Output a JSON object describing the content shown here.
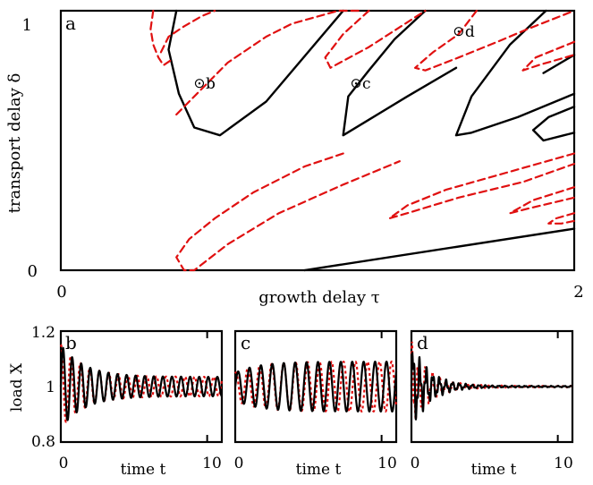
{
  "chart_data": [
    {
      "panel_label": "a",
      "type": "line",
      "xlabel": "growth delay τ",
      "ylabel": "transport delay δ",
      "xlim": [
        0,
        2
      ],
      "ylim": [
        0,
        1
      ],
      "xticks": [
        "0",
        "2"
      ],
      "yticks": [
        "0",
        "1"
      ],
      "colors": {
        "black": "#000000",
        "red": "#e01010"
      },
      "series": [
        {
          "style": "black-solid",
          "x": [
            0.95,
            2.0
          ],
          "y": [
            0.0,
            0.16
          ]
        },
        {
          "style": "black-solid",
          "x": [
            0.45,
            0.42,
            0.46,
            0.52,
            0.62,
            0.8,
            1.1
          ],
          "y": [
            1.0,
            0.85,
            0.68,
            0.55,
            0.52,
            0.65,
            1.0
          ]
        },
        {
          "style": "black-solid",
          "x": [
            1.42,
            1.3,
            1.2,
            1.12,
            1.1,
            1.2,
            1.35,
            1.54
          ],
          "y": [
            1.0,
            0.89,
            0.77,
            0.67,
            0.52,
            0.58,
            0.67,
            0.78
          ]
        },
        {
          "style": "black-solid",
          "x": [
            1.89,
            1.75,
            1.6,
            1.54,
            1.6,
            1.78,
            2.0
          ],
          "y": [
            1.0,
            0.87,
            0.67,
            0.52,
            0.53,
            0.59,
            0.68
          ]
        },
        {
          "style": "black-solid",
          "x": [
            1.88,
            2.0
          ],
          "y": [
            0.76,
            0.83
          ]
        },
        {
          "style": "black-solid",
          "x": [
            2.0,
            1.9,
            1.84,
            1.88,
            1.96,
            2.0
          ],
          "y": [
            0.63,
            0.59,
            0.54,
            0.5,
            0.52,
            0.53
          ]
        },
        {
          "style": "red-dashed",
          "x": [
            0.36,
            0.35,
            0.36,
            0.38,
            0.4,
            0.43
          ],
          "y": [
            1.0,
            0.93,
            0.87,
            0.82,
            0.79,
            0.81
          ]
        },
        {
          "style": "red-dashed",
          "x": [
            0.45,
            0.55,
            0.65,
            0.8,
            0.9,
            1.08,
            1.16
          ],
          "y": [
            0.6,
            0.7,
            0.8,
            0.9,
            0.95,
            1.0,
            1.0
          ]
        },
        {
          "style": "red-dashed",
          "x": [
            0.39,
            0.42,
            0.48,
            0.55,
            0.6
          ],
          "y": [
            0.84,
            0.9,
            0.94,
            0.98,
            1.0
          ]
        },
        {
          "style": "red-dashed",
          "x": [
            1.1,
            0.95,
            0.75,
            0.6,
            0.5,
            0.45,
            0.48,
            0.52,
            0.65,
            0.85,
            1.1,
            1.32
          ],
          "y": [
            0.45,
            0.4,
            0.3,
            0.2,
            0.12,
            0.05,
            0.0,
            0.0,
            0.1,
            0.22,
            0.33,
            0.42
          ]
        },
        {
          "style": "red-dashed",
          "x": [
            1.2,
            1.1,
            1.03,
            1.05,
            1.2,
            1.42
          ],
          "y": [
            1.0,
            0.91,
            0.82,
            0.78,
            0.86,
            1.0
          ]
        },
        {
          "style": "red-dashed",
          "x": [
            2.0,
            1.75,
            1.5,
            1.35,
            1.28,
            1.35,
            1.55,
            1.8,
            2.0
          ],
          "y": [
            0.45,
            0.38,
            0.31,
            0.25,
            0.2,
            0.22,
            0.28,
            0.34,
            0.41
          ]
        },
        {
          "style": "red-dashed",
          "x": [
            1.62,
            1.55,
            1.45,
            1.38,
            1.42,
            1.55,
            1.7,
            1.82,
            2.0
          ],
          "y": [
            1.0,
            0.91,
            0.84,
            0.78,
            0.77,
            0.82,
            0.88,
            0.93,
            1.0
          ]
        },
        {
          "style": "red-dashed",
          "x": [
            2.0,
            1.84,
            1.75,
            1.83,
            2.0
          ],
          "y": [
            0.32,
            0.27,
            0.22,
            0.24,
            0.28
          ]
        },
        {
          "style": "red-dashed",
          "x": [
            2.0,
            1.85,
            1.8,
            1.86,
            2.0
          ],
          "y": [
            0.88,
            0.82,
            0.77,
            0.79,
            0.83
          ]
        },
        {
          "style": "red-dashed",
          "x": [
            2.0,
            1.93,
            1.9,
            1.95,
            2.0
          ],
          "y": [
            0.22,
            0.2,
            0.18,
            0.18,
            0.19
          ]
        }
      ],
      "points": [
        {
          "label": "b",
          "x": 0.54,
          "y": 0.72
        },
        {
          "label": "c",
          "x": 1.15,
          "y": 0.72
        },
        {
          "label": "d",
          "x": 1.55,
          "y": 0.92
        }
      ]
    },
    {
      "panel_label": "b",
      "type": "line",
      "ylabel": "load X",
      "xlabel": "time t",
      "xlim": [
        0,
        11
      ],
      "ylim": [
        0.8,
        1.2
      ],
      "xticks": [
        "0",
        "10"
      ],
      "yticks": [
        "0.8",
        "1",
        "1.2"
      ],
      "signal": {
        "period": 0.62,
        "initial_amplitude": 0.15,
        "final_amplitude": 0.035
      }
    },
    {
      "panel_label": "c",
      "type": "line",
      "xlabel": "time t",
      "xlim": [
        0,
        11
      ],
      "ylim": [
        0.8,
        1.2
      ],
      "xticks": [
        "0",
        "10"
      ],
      "signal": {
        "period": 0.78,
        "initial_amplitude": 0.05,
        "final_amplitude": 0.09
      }
    },
    {
      "panel_label": "d",
      "type": "line",
      "xlabel": "time t",
      "xlim": [
        0,
        11
      ],
      "ylim": [
        0.8,
        1.2
      ],
      "xticks": [
        "0",
        "10"
      ],
      "signal": {
        "period": 0.45,
        "initial_amplitude": 0.12,
        "final_amplitude": 0.0
      }
    }
  ]
}
